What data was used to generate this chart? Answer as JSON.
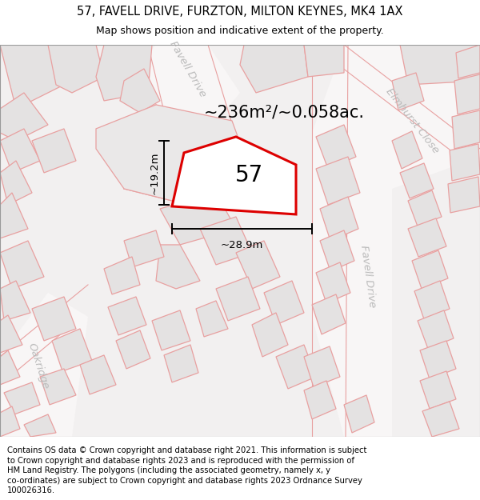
{
  "title_line1": "57, FAVELL DRIVE, FURZTON, MILTON KEYNES, MK4 1AX",
  "title_line2": "Map shows position and indicative extent of the property.",
  "footer_lines": [
    "Contains OS data © Crown copyright and database right 2021. This information is subject",
    "to Crown copyright and database rights 2023 and is reproduced with the permission of",
    "HM Land Registry. The polygons (including the associated geometry, namely x, y",
    "co-ordinates) are subject to Crown copyright and database rights 2023 Ordnance Survey",
    "100026316."
  ],
  "area_label": "~236m²/~0.058ac.",
  "number_label": "57",
  "dim_width": "~28.9m",
  "dim_height": "~19.2m",
  "map_bg": "#f2f0f0",
  "highlight_color": "#dd0000",
  "road_line_color": "#e8a0a0",
  "plot_line_color": "#e8a0a0",
  "block_fill": "#e4e2e2",
  "block_line": "#e8a0a0",
  "street_color": "#bbbbbb",
  "title_fontsize": 10.5,
  "subtitle_fontsize": 9,
  "footer_fontsize": 7.2,
  "area_fontsize": 15,
  "number_fontsize": 20,
  "dim_fontsize": 9.5,
  "street_fontsize": 9.5
}
